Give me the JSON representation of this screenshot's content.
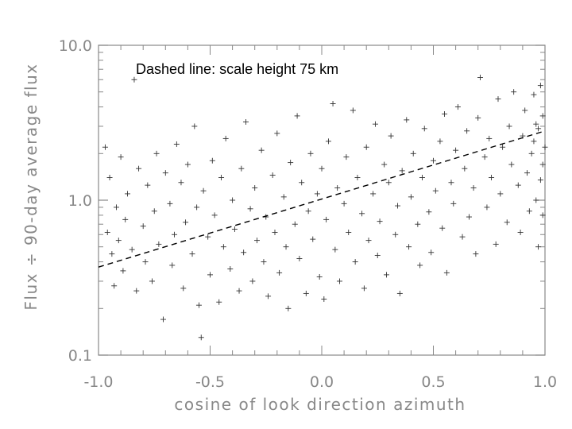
{
  "chart_data": {
    "type": "scatter",
    "title": "",
    "xlabel": "cosine of look direction azimuth",
    "ylabel": "Flux ÷ 90-day average flux",
    "annotation": "Dashed line: scale height 75 km",
    "xlim": [
      -1.0,
      1.0
    ],
    "ylim": [
      0.1,
      10.0
    ],
    "y_scale": "log",
    "x_ticks": [
      "-1.0",
      "-0.5",
      "0.0",
      "0.5",
      "1.0"
    ],
    "x_tick_values": [
      -1.0,
      -0.5,
      0.0,
      0.5,
      1.0
    ],
    "y_ticks": [
      "0.1",
      "1.0",
      "10.0"
    ],
    "y_tick_values": [
      0.1,
      1.0,
      10.0
    ],
    "grid": false,
    "marker": "plus",
    "marker_color": "#333333",
    "axis_color": "#888888",
    "fit_line": {
      "style": "dashed",
      "x": [
        -1.0,
        1.0
      ],
      "y": [
        0.37,
        2.8
      ]
    },
    "series": [
      {
        "values": [
          [
            -0.97,
            2.2
          ],
          [
            -0.96,
            0.62
          ],
          [
            -0.95,
            1.4
          ],
          [
            -0.94,
            0.45
          ],
          [
            -0.93,
            0.28
          ],
          [
            -0.92,
            0.9
          ],
          [
            -0.91,
            0.55
          ],
          [
            -0.9,
            1.9
          ],
          [
            -0.89,
            0.35
          ],
          [
            -0.88,
            0.75
          ],
          [
            -0.87,
            1.1
          ],
          [
            -0.85,
            0.48
          ],
          [
            -0.84,
            6.0
          ],
          [
            -0.83,
            0.26
          ],
          [
            -0.82,
            1.6
          ],
          [
            -0.8,
            0.68
          ],
          [
            -0.79,
            0.4
          ],
          [
            -0.78,
            1.25
          ],
          [
            -0.76,
            0.3
          ],
          [
            -0.75,
            0.85
          ],
          [
            -0.74,
            2.0
          ],
          [
            -0.73,
            0.52
          ],
          [
            -0.71,
            0.17
          ],
          [
            -0.7,
            1.5
          ],
          [
            -0.68,
            0.95
          ],
          [
            -0.67,
            0.38
          ],
          [
            -0.66,
            0.6
          ],
          [
            -0.65,
            2.3
          ],
          [
            -0.63,
            1.3
          ],
          [
            -0.62,
            0.27
          ],
          [
            -0.61,
            0.72
          ],
          [
            -0.6,
            1.7
          ],
          [
            -0.58,
            0.45
          ],
          [
            -0.57,
            3.0
          ],
          [
            -0.56,
            0.9
          ],
          [
            -0.55,
            0.21
          ],
          [
            -0.54,
            0.13
          ],
          [
            -0.53,
            1.15
          ],
          [
            -0.51,
            0.58
          ],
          [
            -0.5,
            0.33
          ],
          [
            -0.49,
            1.8
          ],
          [
            -0.48,
            0.8
          ],
          [
            -0.46,
            0.22
          ],
          [
            -0.45,
            1.4
          ],
          [
            -0.44,
            0.5
          ],
          [
            -0.43,
            2.5
          ],
          [
            -0.41,
            0.36
          ],
          [
            -0.4,
            1.0
          ],
          [
            -0.39,
            0.65
          ],
          [
            -0.37,
            0.26
          ],
          [
            -0.36,
            1.6
          ],
          [
            -0.35,
            0.46
          ],
          [
            -0.34,
            3.2
          ],
          [
            -0.32,
            0.88
          ],
          [
            -0.31,
            0.3
          ],
          [
            -0.3,
            1.2
          ],
          [
            -0.29,
            0.55
          ],
          [
            -0.27,
            2.1
          ],
          [
            -0.26,
            0.4
          ],
          [
            -0.25,
            0.78
          ],
          [
            -0.24,
            0.24
          ],
          [
            -0.22,
            1.45
          ],
          [
            -0.21,
            0.62
          ],
          [
            -0.2,
            2.7
          ],
          [
            -0.19,
            0.34
          ],
          [
            -0.17,
            1.05
          ],
          [
            -0.16,
            0.5
          ],
          [
            -0.15,
            0.2
          ],
          [
            -0.14,
            1.75
          ],
          [
            -0.12,
            0.7
          ],
          [
            -0.11,
            3.5
          ],
          [
            -0.1,
            0.42
          ],
          [
            -0.09,
            1.3
          ],
          [
            -0.07,
            0.25
          ],
          [
            -0.06,
            0.85
          ],
          [
            -0.05,
            2.0
          ],
          [
            -0.04,
            0.56
          ],
          [
            -0.02,
            1.1
          ],
          [
            -0.01,
            0.32
          ],
          [
            0.0,
            1.6
          ],
          [
            0.01,
            0.23
          ],
          [
            0.02,
            0.75
          ],
          [
            0.03,
            2.4
          ],
          [
            0.05,
            4.2
          ],
          [
            0.06,
            0.48
          ],
          [
            0.07,
            1.2
          ],
          [
            0.08,
            0.3
          ],
          [
            0.1,
            0.95
          ],
          [
            0.11,
            1.9
          ],
          [
            0.12,
            0.62
          ],
          [
            0.14,
            3.8
          ],
          [
            0.15,
            0.4
          ],
          [
            0.16,
            1.4
          ],
          [
            0.18,
            0.82
          ],
          [
            0.19,
            0.27
          ],
          [
            0.2,
            2.2
          ],
          [
            0.21,
            0.55
          ],
          [
            0.23,
            1.1
          ],
          [
            0.24,
            3.1
          ],
          [
            0.25,
            0.44
          ],
          [
            0.26,
            0.73
          ],
          [
            0.28,
            1.7
          ],
          [
            0.29,
            0.33
          ],
          [
            0.3,
            1.3
          ],
          [
            0.31,
            2.6
          ],
          [
            0.33,
            0.6
          ],
          [
            0.34,
            0.92
          ],
          [
            0.35,
            0.25
          ],
          [
            0.36,
            1.55
          ],
          [
            0.38,
            3.3
          ],
          [
            0.39,
            0.5
          ],
          [
            0.4,
            1.05
          ],
          [
            0.41,
            2.0
          ],
          [
            0.43,
            0.7
          ],
          [
            0.44,
            0.38
          ],
          [
            0.45,
            1.4
          ],
          [
            0.46,
            2.9
          ],
          [
            0.48,
            0.84
          ],
          [
            0.49,
            0.46
          ],
          [
            0.5,
            1.8
          ],
          [
            0.51,
            1.15
          ],
          [
            0.53,
            2.4
          ],
          [
            0.54,
            0.66
          ],
          [
            0.55,
            3.6
          ],
          [
            0.56,
            0.34
          ],
          [
            0.58,
            1.3
          ],
          [
            0.59,
            0.95
          ],
          [
            0.6,
            2.1
          ],
          [
            0.61,
            4.0
          ],
          [
            0.63,
            0.58
          ],
          [
            0.64,
            1.6
          ],
          [
            0.65,
            2.8
          ],
          [
            0.66,
            0.78
          ],
          [
            0.68,
            1.2
          ],
          [
            0.69,
            0.45
          ],
          [
            0.7,
            3.4
          ],
          [
            0.71,
            6.2
          ],
          [
            0.73,
            1.9
          ],
          [
            0.74,
            0.9
          ],
          [
            0.75,
            2.5
          ],
          [
            0.76,
            1.4
          ],
          [
            0.78,
            0.52
          ],
          [
            0.79,
            4.5
          ],
          [
            0.8,
            1.1
          ],
          [
            0.81,
            2.2
          ],
          [
            0.83,
            0.72
          ],
          [
            0.84,
            3.0
          ],
          [
            0.85,
            1.7
          ],
          [
            0.86,
            5.0
          ],
          [
            0.88,
            1.25
          ],
          [
            0.89,
            0.62
          ],
          [
            0.9,
            2.6
          ],
          [
            0.91,
            3.8
          ],
          [
            0.92,
            1.5
          ],
          [
            0.93,
            0.85
          ],
          [
            0.94,
            2.0
          ],
          [
            0.95,
            4.8
          ],
          [
            0.96,
            1.0
          ],
          [
            0.97,
            2.9
          ],
          [
            0.98,
            1.35
          ],
          [
            0.99,
            3.5
          ],
          [
            1.0,
            2.2
          ],
          [
            0.97,
            0.5
          ],
          [
            0.99,
            0.8
          ],
          [
            0.96,
            3.1
          ],
          [
            0.98,
            5.5
          ],
          [
            0.99,
            1.7
          ],
          [
            0.95,
            2.4
          ]
        ]
      }
    ]
  }
}
